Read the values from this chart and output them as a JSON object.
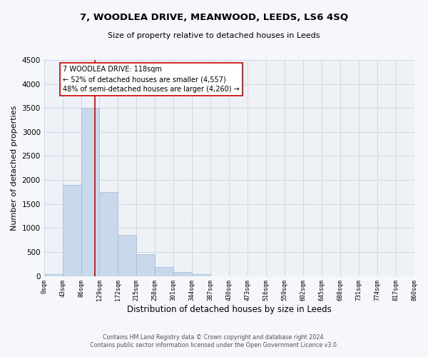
{
  "title": "7, WOODLEA DRIVE, MEANWOOD, LEEDS, LS6 4SQ",
  "subtitle": "Size of property relative to detached houses in Leeds",
  "xlabel": "Distribution of detached houses by size in Leeds",
  "ylabel": "Number of detached properties",
  "bar_color": "#c9d9ec",
  "bar_edge_color": "#a0b8d8",
  "bin_edges": [
    0,
    43,
    86,
    129,
    172,
    215,
    258,
    301,
    344,
    387,
    430,
    473,
    516,
    559,
    602,
    645,
    688,
    731,
    774,
    817,
    860
  ],
  "bin_labels": [
    "0sqm",
    "43sqm",
    "86sqm",
    "129sqm",
    "172sqm",
    "215sqm",
    "258sqm",
    "301sqm",
    "344sqm",
    "387sqm",
    "430sqm",
    "473sqm",
    "516sqm",
    "559sqm",
    "602sqm",
    "645sqm",
    "688sqm",
    "731sqm",
    "774sqm",
    "817sqm",
    "860sqm"
  ],
  "bar_heights": [
    40,
    1900,
    3500,
    1750,
    860,
    460,
    180,
    90,
    40,
    0,
    0,
    0,
    0,
    0,
    0,
    0,
    0,
    0,
    0,
    0
  ],
  "ylim": [
    0,
    4500
  ],
  "yticks": [
    0,
    500,
    1000,
    1500,
    2000,
    2500,
    3000,
    3500,
    4000,
    4500
  ],
  "property_line_x": 118,
  "property_line_color": "#cc0000",
  "annotation_title": "7 WOODLEA DRIVE: 118sqm",
  "annotation_line1": "← 52% of detached houses are smaller (4,557)",
  "annotation_line2": "48% of semi-detached houses are larger (4,260) →",
  "annotation_box_color": "#ffffff",
  "annotation_box_edge": "#cc0000",
  "grid_color": "#d0d8e4",
  "background_color": "#eef2f7",
  "fig_background": "#f5f7fa",
  "footer_line1": "Contains HM Land Registry data © Crown copyright and database right 2024.",
  "footer_line2": "Contains public sector information licensed under the Open Government Licence v3.0."
}
